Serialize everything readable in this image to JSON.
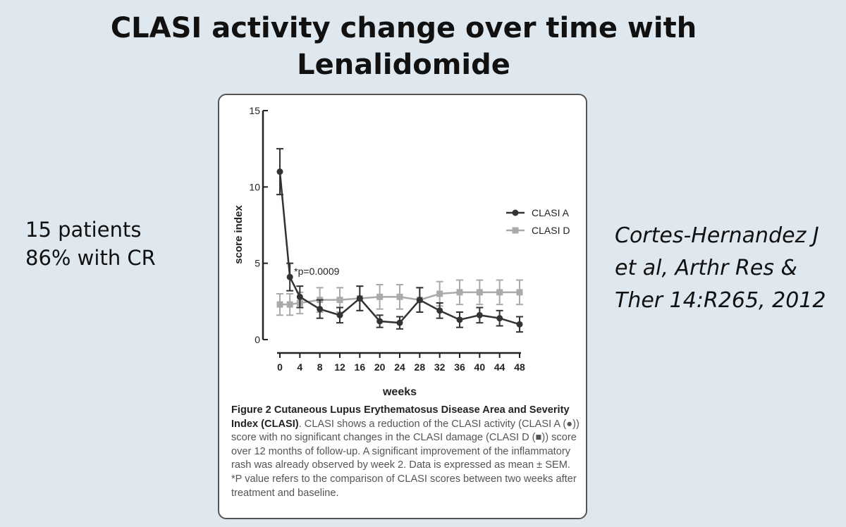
{
  "slide": {
    "title_line1": "CLASI activity change over time with",
    "title_line2": "Lenalidomide",
    "left_line1": "15 patients",
    "left_line2": "86% with CR",
    "citation": "Cortes-Hernandez J et al, Arthr Res & Ther 14:R265, 2012"
  },
  "caption": {
    "bold": "Figure 2 Cutaneous Lupus Erythematosus Disease Area and Severity Index (CLASI)",
    "text": ". CLASI shows a reduction of the CLASI activity (CLASI A (●)) score with no significant changes in the CLASI damage (CLASI D (■)) score over 12 months of follow-up. A significant improvement of the inflammatory rash was already observed by week 2. Data is expressed as mean ± SEM. *P value refers to the comparison of CLASI scores between two weeks after treatment and baseline."
  },
  "colors": {
    "clasi_a": "#333333",
    "clasi_d": "#aaaaaa",
    "background": "#dfe8ef"
  },
  "chart_data": {
    "type": "line",
    "xlabel": "weeks",
    "ylabel": "score index",
    "xlim": [
      0,
      48
    ],
    "ylim": [
      0,
      15
    ],
    "xticks": [
      0,
      4,
      8,
      12,
      16,
      20,
      24,
      28,
      32,
      36,
      40,
      44,
      48
    ],
    "yticks": [
      0,
      5,
      10,
      15
    ],
    "legend_position": "right",
    "annotation": {
      "text": "*p=0.0009",
      "x": 2,
      "y": 4.1
    },
    "series": [
      {
        "name": "CLASI A",
        "marker": "circle",
        "x": [
          0,
          2,
          4,
          8,
          12,
          16,
          20,
          24,
          28,
          32,
          36,
          40,
          44,
          48
        ],
        "y": [
          11.0,
          4.1,
          2.8,
          2.0,
          1.6,
          2.7,
          1.2,
          1.1,
          2.6,
          1.9,
          1.3,
          1.6,
          1.4,
          1.0
        ],
        "err": [
          1.5,
          0.9,
          0.7,
          0.6,
          0.5,
          0.8,
          0.4,
          0.4,
          0.8,
          0.5,
          0.5,
          0.5,
          0.5,
          0.5
        ]
      },
      {
        "name": "CLASI D",
        "marker": "square",
        "x": [
          0,
          2,
          4,
          8,
          12,
          16,
          20,
          24,
          28,
          32,
          36,
          40,
          44,
          48
        ],
        "y": [
          2.3,
          2.3,
          2.4,
          2.6,
          2.6,
          2.7,
          2.8,
          2.8,
          2.6,
          3.0,
          3.1,
          3.1,
          3.1,
          3.1
        ],
        "err": [
          0.7,
          0.7,
          0.7,
          0.8,
          0.8,
          0.8,
          0.8,
          0.8,
          0.8,
          0.8,
          0.8,
          0.8,
          0.8,
          0.8
        ]
      }
    ]
  }
}
